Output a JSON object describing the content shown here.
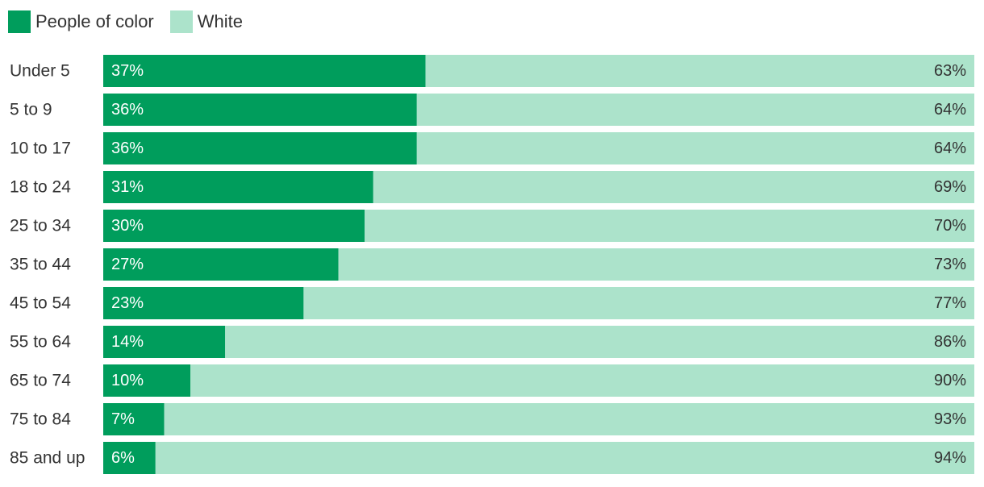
{
  "legend": {
    "poc_label": "People of color",
    "white_label": "White"
  },
  "chart_data": {
    "type": "bar",
    "stacked": true,
    "orientation": "horizontal",
    "percent_scale": [
      0,
      100
    ],
    "legend_position": "top-left",
    "grid": false,
    "categories": [
      "Under 5",
      "5 to 9",
      "10 to 17",
      "18 to 24",
      "25 to 34",
      "35 to 44",
      "45 to 54",
      "55 to 64",
      "65 to 74",
      "75 to 84",
      "85 and up"
    ],
    "series": [
      {
        "name": "People of color",
        "color": "#009d5c",
        "values": [
          37,
          36,
          36,
          31,
          30,
          27,
          23,
          14,
          10,
          7,
          6
        ],
        "labels": [
          "37%",
          "36%",
          "36%",
          "31%",
          "30%",
          "27%",
          "23%",
          "14%",
          "10%",
          "7%",
          "6%"
        ]
      },
      {
        "name": "White",
        "color": "#ace3cb",
        "values": [
          63,
          64,
          64,
          69,
          70,
          73,
          77,
          86,
          90,
          93,
          94
        ],
        "labels": [
          "63%",
          "64%",
          "64%",
          "69%",
          "70%",
          "73%",
          "77%",
          "86%",
          "90%",
          "93%",
          "94%"
        ]
      }
    ]
  }
}
